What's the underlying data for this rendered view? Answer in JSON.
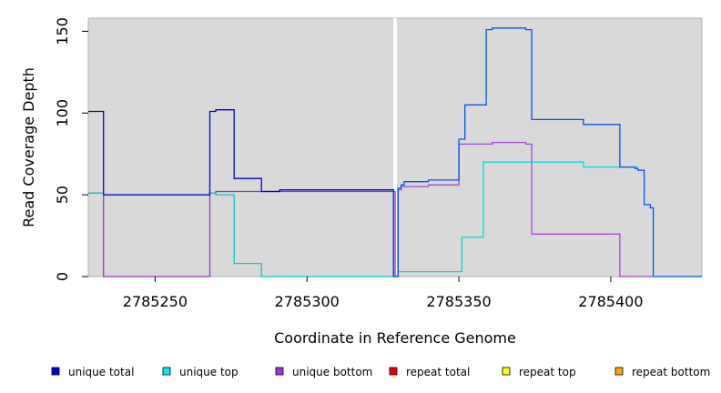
{
  "chart_data": {
    "type": "line",
    "title": "",
    "xlabel": "Coordinate in Reference Genome",
    "ylabel": "Read Coverage Depth",
    "xlim": [
      2785228,
      2785430
    ],
    "ylim": [
      0,
      158
    ],
    "x_ticks": [
      2785250,
      2785300,
      2785350,
      2785400
    ],
    "x_tick_labels": [
      "2785250",
      "2785300",
      "2785350",
      "2785400"
    ],
    "y_ticks": [
      0,
      50,
      100,
      150
    ],
    "y_tick_labels": [
      "0",
      "50",
      "100",
      "150"
    ],
    "grid": false,
    "background": "#d9d9d9",
    "vertical_marker": {
      "x": 2785329,
      "color": "#ffffff"
    },
    "legend_position": "bottom",
    "series": [
      {
        "name": "unique total",
        "color_left": "#0000dd",
        "color_right": "#0055ee",
        "points": [
          [
            2785228,
            101
          ],
          [
            2785233,
            101
          ],
          [
            2785233,
            50
          ],
          [
            2785268,
            50
          ],
          [
            2785268,
            101
          ],
          [
            2785270,
            101
          ],
          [
            2785270,
            102
          ],
          [
            2785276,
            102
          ],
          [
            2785276,
            60
          ],
          [
            2785285,
            60
          ],
          [
            2785285,
            52
          ],
          [
            2785291,
            52
          ],
          [
            2785291,
            53
          ],
          [
            2785328.5,
            53
          ],
          [
            2785328.5,
            0
          ],
          [
            2785330,
            0
          ],
          [
            2785330,
            54
          ],
          [
            2785331,
            54
          ],
          [
            2785331,
            56
          ],
          [
            2785332,
            56
          ],
          [
            2785332,
            58
          ],
          [
            2785340,
            58
          ],
          [
            2785340,
            59
          ],
          [
            2785350,
            59
          ],
          [
            2785350,
            84
          ],
          [
            2785352,
            84
          ],
          [
            2785352,
            105
          ],
          [
            2785359,
            105
          ],
          [
            2785359,
            151
          ],
          [
            2785361,
            151
          ],
          [
            2785361,
            152
          ],
          [
            2785372,
            152
          ],
          [
            2785372,
            151
          ],
          [
            2785374,
            151
          ],
          [
            2785374,
            96
          ],
          [
            2785391,
            96
          ],
          [
            2785391,
            93
          ],
          [
            2785403,
            93
          ],
          [
            2785403,
            67
          ],
          [
            2785408,
            67
          ],
          [
            2785408,
            66
          ],
          [
            2785409,
            66
          ],
          [
            2785409,
            65
          ],
          [
            2785411,
            65
          ],
          [
            2785411,
            44
          ],
          [
            2785413,
            44
          ],
          [
            2785413,
            42
          ],
          [
            2785414,
            42
          ],
          [
            2785414,
            0
          ],
          [
            2785430,
            0
          ]
        ]
      },
      {
        "name": "unique top",
        "color_left": "#00cccc",
        "color_right": "#00dddd",
        "points": [
          [
            2785228,
            51
          ],
          [
            2785233,
            51
          ],
          [
            2785233,
            50
          ],
          [
            2785268,
            50
          ],
          [
            2785268,
            51
          ],
          [
            2785270,
            51
          ],
          [
            2785270,
            50
          ],
          [
            2785276,
            50
          ],
          [
            2785276,
            8
          ],
          [
            2785285,
            8
          ],
          [
            2785285,
            0
          ],
          [
            2785329,
            0
          ],
          [
            2785329,
            0
          ],
          [
            2785330,
            0
          ],
          [
            2785330,
            3
          ],
          [
            2785351,
            3
          ],
          [
            2785351,
            24
          ],
          [
            2785358,
            24
          ],
          [
            2785358,
            70
          ],
          [
            2785391,
            70
          ],
          [
            2785391,
            67
          ],
          [
            2785403,
            67
          ],
          [
            2785403,
            67
          ],
          [
            2785409,
            67
          ]
        ]
      },
      {
        "name": "unique bottom",
        "color_left": "#9933cc",
        "color_right": "#aa44dd",
        "points": [
          [
            2785228,
            51
          ],
          [
            2785233,
            51
          ],
          [
            2785233,
            0
          ],
          [
            2785268,
            0
          ],
          [
            2785268,
            51
          ],
          [
            2785270,
            51
          ],
          [
            2785270,
            52
          ],
          [
            2785329,
            52
          ],
          [
            2785329,
            0
          ],
          [
            2785330,
            0
          ],
          [
            2785330,
            53
          ],
          [
            2785331,
            53
          ],
          [
            2785331,
            55
          ],
          [
            2785340,
            55
          ],
          [
            2785340,
            56
          ],
          [
            2785350,
            56
          ],
          [
            2785350,
            81
          ],
          [
            2785361,
            81
          ],
          [
            2785361,
            82
          ],
          [
            2785372,
            82
          ],
          [
            2785372,
            81
          ],
          [
            2785374,
            81
          ],
          [
            2785374,
            26
          ],
          [
            2785403,
            26
          ],
          [
            2785403,
            0
          ],
          [
            2785414,
            0
          ]
        ]
      },
      {
        "name": "repeat total",
        "color_left": "#dd0000",
        "color_right": "#ee2200",
        "points": [
          [
            2785228,
            0
          ],
          [
            2785430,
            0
          ]
        ]
      },
      {
        "name": "repeat top",
        "color_left": "#eeee00",
        "color_right": "#eeee00",
        "points": [
          [
            2785228,
            0
          ],
          [
            2785430,
            0
          ]
        ]
      },
      {
        "name": "repeat bottom",
        "color_left": "#ff9900",
        "color_right": "#ffaa00",
        "points": [
          [
            2785228,
            0
          ],
          [
            2785430,
            0
          ]
        ]
      }
    ]
  },
  "legend": [
    {
      "label": "unique total",
      "color": "#0000ee"
    },
    {
      "label": "unique top",
      "color": "#00eeee"
    },
    {
      "label": "unique bottom",
      "color": "#9933ee"
    },
    {
      "label": "repeat total",
      "color": "#ee0000"
    },
    {
      "label": "repeat top",
      "color": "#ffff00"
    },
    {
      "label": "repeat bottom",
      "color": "#ffa500"
    }
  ]
}
